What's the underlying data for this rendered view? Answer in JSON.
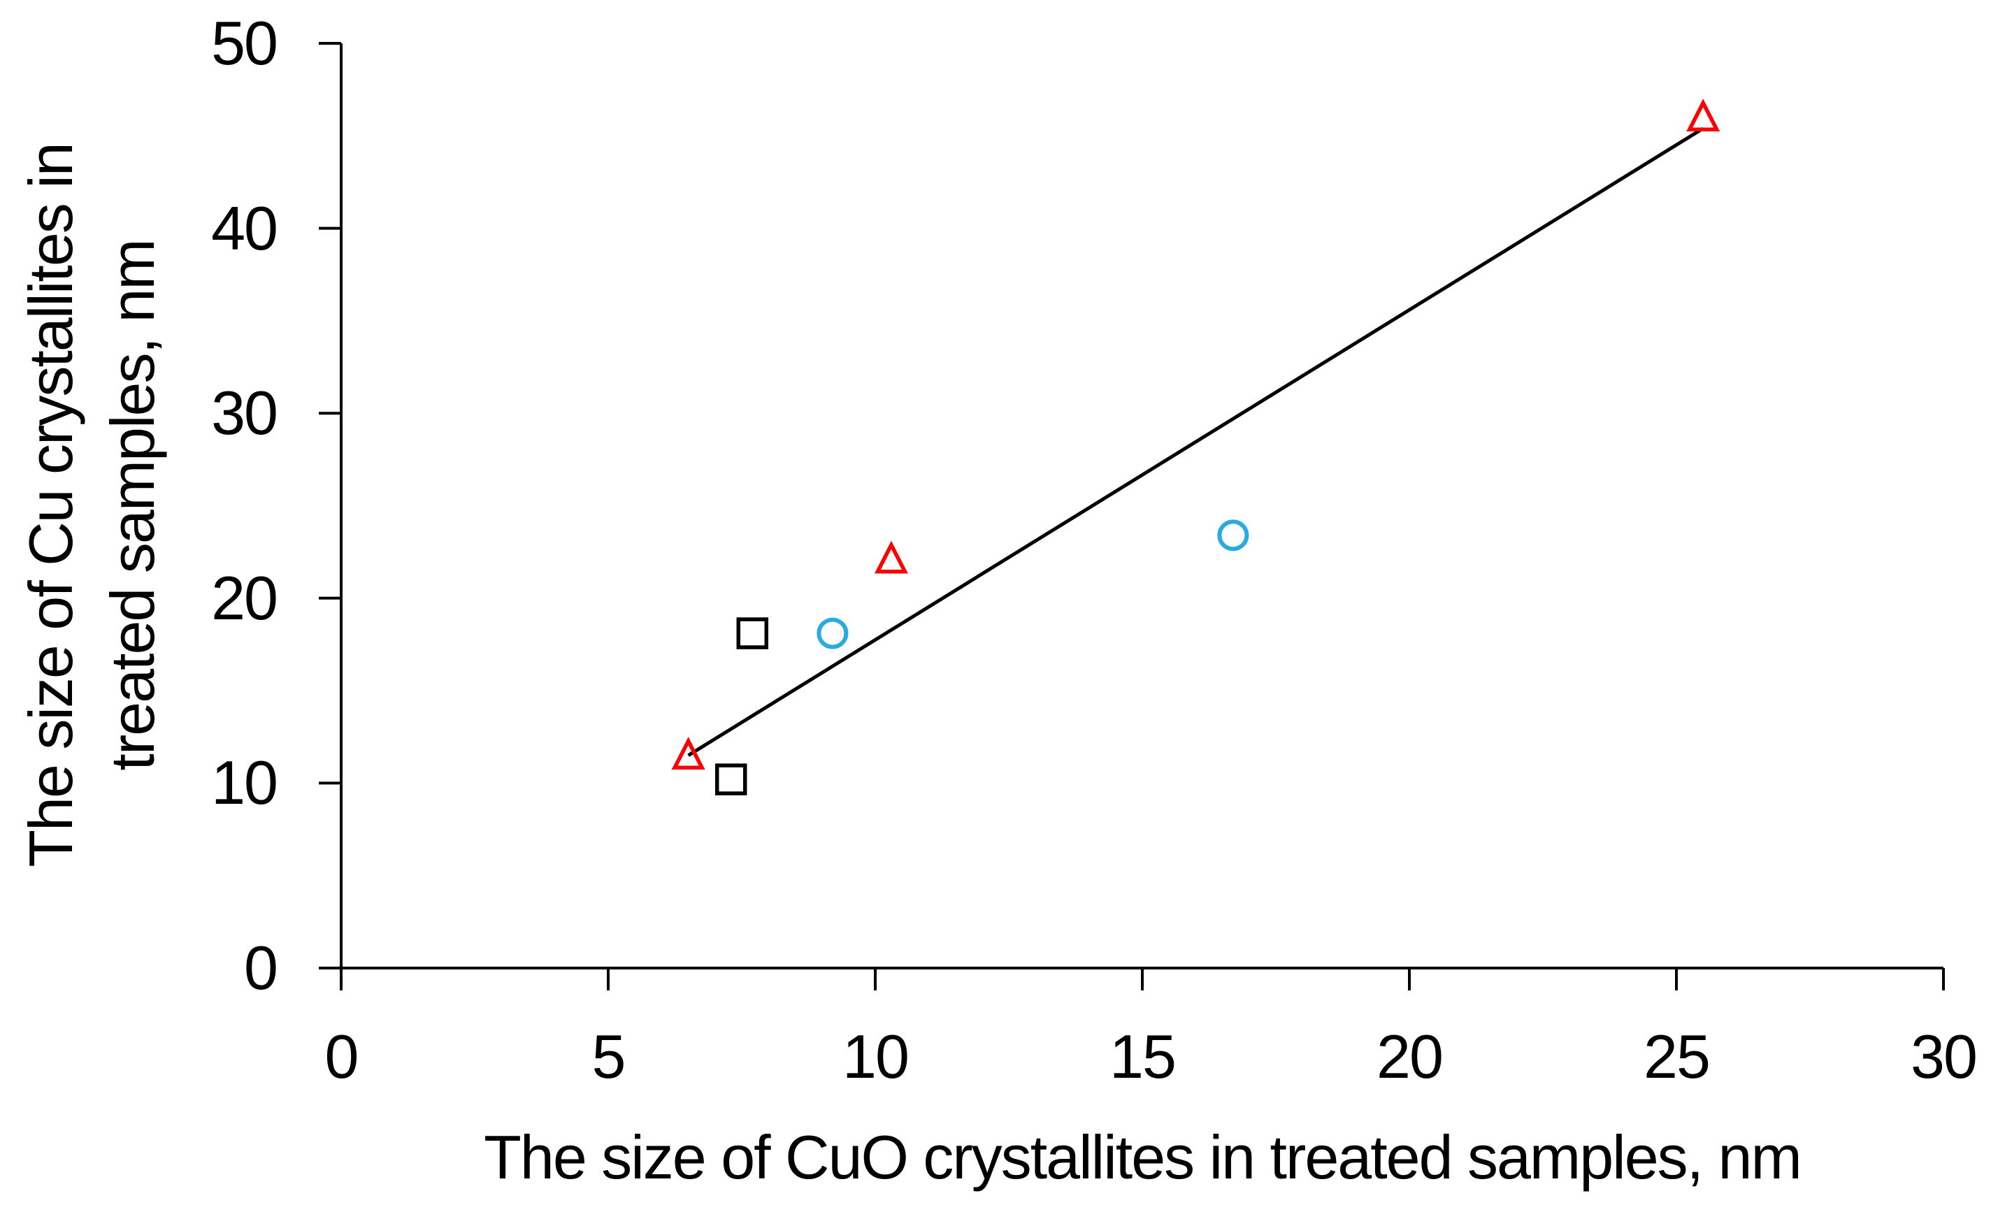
{
  "chart_data": {
    "type": "scatter",
    "title": "",
    "xlabel": "The size of CuO crystallites in treated samples, nm",
    "ylabel_lines": [
      "The size of Cu crystallites in",
      "treated samples, nm"
    ],
    "xlim": [
      0,
      30
    ],
    "ylim": [
      0,
      50
    ],
    "x_ticks": [
      0,
      5,
      10,
      15,
      20,
      25,
      30
    ],
    "y_ticks": [
      0,
      10,
      20,
      30,
      40,
      50
    ],
    "grid": false,
    "legend": "none",
    "axis_color": "#000000",
    "series": [
      {
        "name": "red-triangles",
        "marker": "triangle",
        "color": "#FF0000",
        "points": [
          [
            6.5,
            11.5
          ],
          [
            10.3,
            22.1
          ],
          [
            25.5,
            46.0
          ]
        ]
      },
      {
        "name": "blue-circles",
        "marker": "circle",
        "color": "#29ABE2",
        "points": [
          [
            9.2,
            18.1
          ],
          [
            16.7,
            23.4
          ]
        ]
      },
      {
        "name": "black-squares",
        "marker": "square",
        "color": "#000000",
        "points": [
          [
            7.7,
            18.1
          ],
          [
            7.3,
            10.2
          ]
        ]
      }
    ],
    "trendline": {
      "color": "#000000",
      "x1": 6.5,
      "y1": 11.5,
      "x2": 25.5,
      "y2": 45.4
    }
  }
}
